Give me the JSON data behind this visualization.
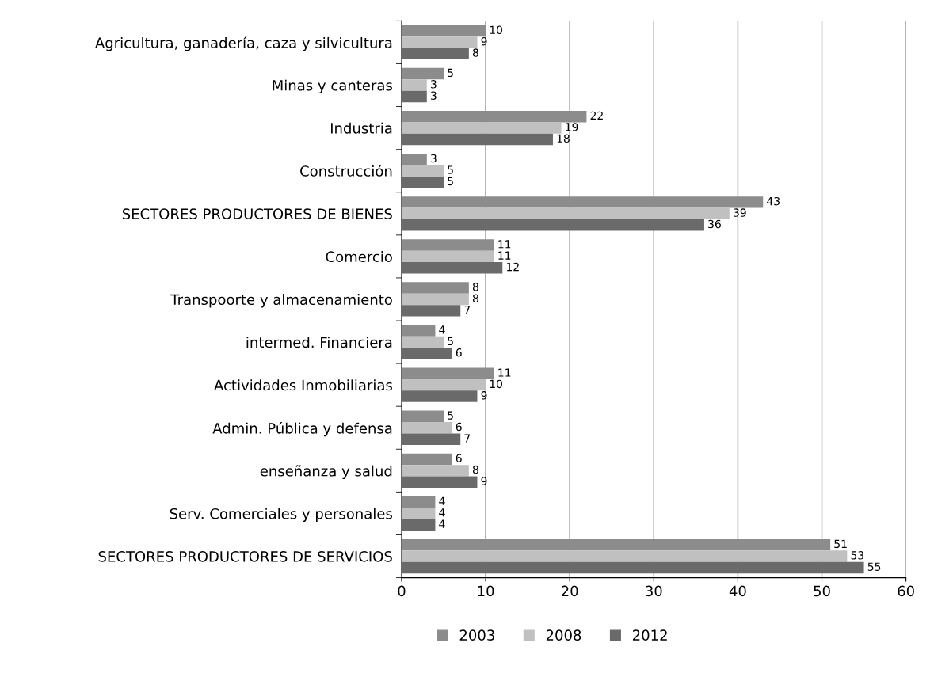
{
  "chart_data": {
    "type": "bar",
    "orientation": "horizontal",
    "categories": [
      "Agricultura, ganadería, caza y silvicultura",
      "Minas y canteras",
      "Industria",
      "Construcción",
      "SECTORES PRODUCTORES DE BIENES",
      "Comercio",
      "Transpoorte y almacenamiento",
      "intermed. Financiera",
      "Actividades Inmobiliarias",
      "Admin. Pública y defensa",
      "enseñanza y salud",
      "Serv. Comerciales y personales",
      "SECTORES PRODUCTORES DE SERVICIOS"
    ],
    "series": [
      {
        "name": "2003",
        "color": "#8c8c8c",
        "values": [
          10,
          5,
          22,
          3,
          43,
          11,
          8,
          4,
          11,
          5,
          6,
          4,
          51
        ]
      },
      {
        "name": "2008",
        "color": "#c0c0c0",
        "values": [
          9,
          3,
          19,
          5,
          39,
          11,
          8,
          5,
          10,
          6,
          8,
          4,
          53
        ]
      },
      {
        "name": "2012",
        "color": "#6a6a6a",
        "values": [
          8,
          3,
          18,
          5,
          36,
          12,
          7,
          6,
          9,
          7,
          9,
          4,
          55
        ]
      }
    ],
    "xlim": [
      0,
      60
    ],
    "xticks": [
      0,
      10,
      20,
      30,
      40,
      50,
      60
    ],
    "grid": "x",
    "legend": "bottom",
    "data_labels": true
  }
}
